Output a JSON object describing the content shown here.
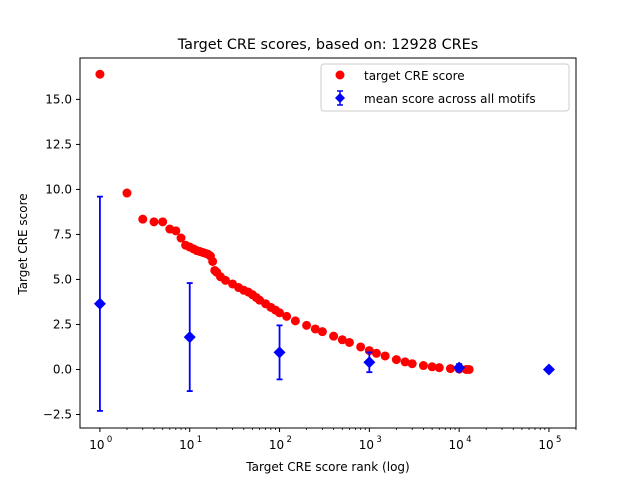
{
  "chart_data": {
    "type": "scatter",
    "title": "Target CRE scores, based on: 12928 CREs",
    "xlabel": "Target CRE score rank (log)",
    "ylabel": "Target CRE score",
    "x_scale": "log",
    "xlim": [
      0.6,
      200000
    ],
    "ylim": [
      -3.25,
      17.3
    ],
    "x_ticks": [
      {
        "value": 1,
        "label": "10",
        "exp": "0"
      },
      {
        "value": 10,
        "label": "10",
        "exp": "1"
      },
      {
        "value": 100,
        "label": "10",
        "exp": "2"
      },
      {
        "value": 1000,
        "label": "10",
        "exp": "3"
      },
      {
        "value": 10000,
        "label": "10",
        "exp": "4"
      },
      {
        "value": 100000,
        "label": "10",
        "exp": "5"
      }
    ],
    "y_ticks": [
      {
        "value": -2.5,
        "label": "−2.5"
      },
      {
        "value": 0.0,
        "label": "0.0"
      },
      {
        "value": 2.5,
        "label": "2.5"
      },
      {
        "value": 5.0,
        "label": "5.0"
      },
      {
        "value": 7.5,
        "label": "7.5"
      },
      {
        "value": 10.0,
        "label": "10.0"
      },
      {
        "value": 12.5,
        "label": "12.5"
      },
      {
        "value": 15.0,
        "label": "15.0"
      }
    ],
    "grid": false,
    "legend_position": "top-right",
    "series": [
      {
        "name": "target CRE score",
        "color": "#ff0000",
        "marker": "circle",
        "points": [
          [
            1,
            16.4
          ],
          [
            2,
            9.8
          ],
          [
            3,
            8.35
          ],
          [
            4,
            8.2
          ],
          [
            5,
            8.2
          ],
          [
            6,
            7.8
          ],
          [
            7,
            7.7
          ],
          [
            8,
            7.3
          ],
          [
            9,
            6.9
          ],
          [
            10,
            6.8
          ],
          [
            11,
            6.7
          ],
          [
            12,
            6.6
          ],
          [
            13,
            6.55
          ],
          [
            14,
            6.5
          ],
          [
            15,
            6.45
          ],
          [
            16,
            6.4
          ],
          [
            17,
            6.3
          ],
          [
            18,
            6.0
          ],
          [
            19,
            5.5
          ],
          [
            20,
            5.4
          ],
          [
            22,
            5.15
          ],
          [
            25,
            4.95
          ],
          [
            30,
            4.75
          ],
          [
            35,
            4.55
          ],
          [
            40,
            4.4
          ],
          [
            45,
            4.3
          ],
          [
            50,
            4.15
          ],
          [
            55,
            4.0
          ],
          [
            60,
            3.85
          ],
          [
            70,
            3.65
          ],
          [
            80,
            3.45
          ],
          [
            90,
            3.3
          ],
          [
            100,
            3.15
          ],
          [
            120,
            2.95
          ],
          [
            150,
            2.7
          ],
          [
            200,
            2.45
          ],
          [
            250,
            2.25
          ],
          [
            300,
            2.1
          ],
          [
            400,
            1.85
          ],
          [
            500,
            1.65
          ],
          [
            600,
            1.5
          ],
          [
            800,
            1.25
          ],
          [
            1000,
            1.05
          ],
          [
            1200,
            0.9
          ],
          [
            1500,
            0.75
          ],
          [
            2000,
            0.55
          ],
          [
            2500,
            0.42
          ],
          [
            3000,
            0.32
          ],
          [
            4000,
            0.22
          ],
          [
            5000,
            0.15
          ],
          [
            6000,
            0.1
          ],
          [
            8000,
            0.05
          ],
          [
            10000,
            0.02
          ],
          [
            12000,
            0.0
          ],
          [
            12928,
            0.0
          ]
        ]
      },
      {
        "name": "mean score across all motifs",
        "color": "#0000ff",
        "marker": "diamond",
        "points": [
          {
            "x": 1,
            "y": 3.65,
            "err": 5.95
          },
          {
            "x": 10,
            "y": 1.8,
            "err": 3.0
          },
          {
            "x": 100,
            "y": 0.95,
            "err": 1.5
          },
          {
            "x": 1000,
            "y": 0.4,
            "err": 0.55
          },
          {
            "x": 10000,
            "y": 0.1,
            "err": 0.2
          },
          {
            "x": 100000,
            "y": 0.0,
            "err": 0.0
          }
        ]
      }
    ]
  }
}
